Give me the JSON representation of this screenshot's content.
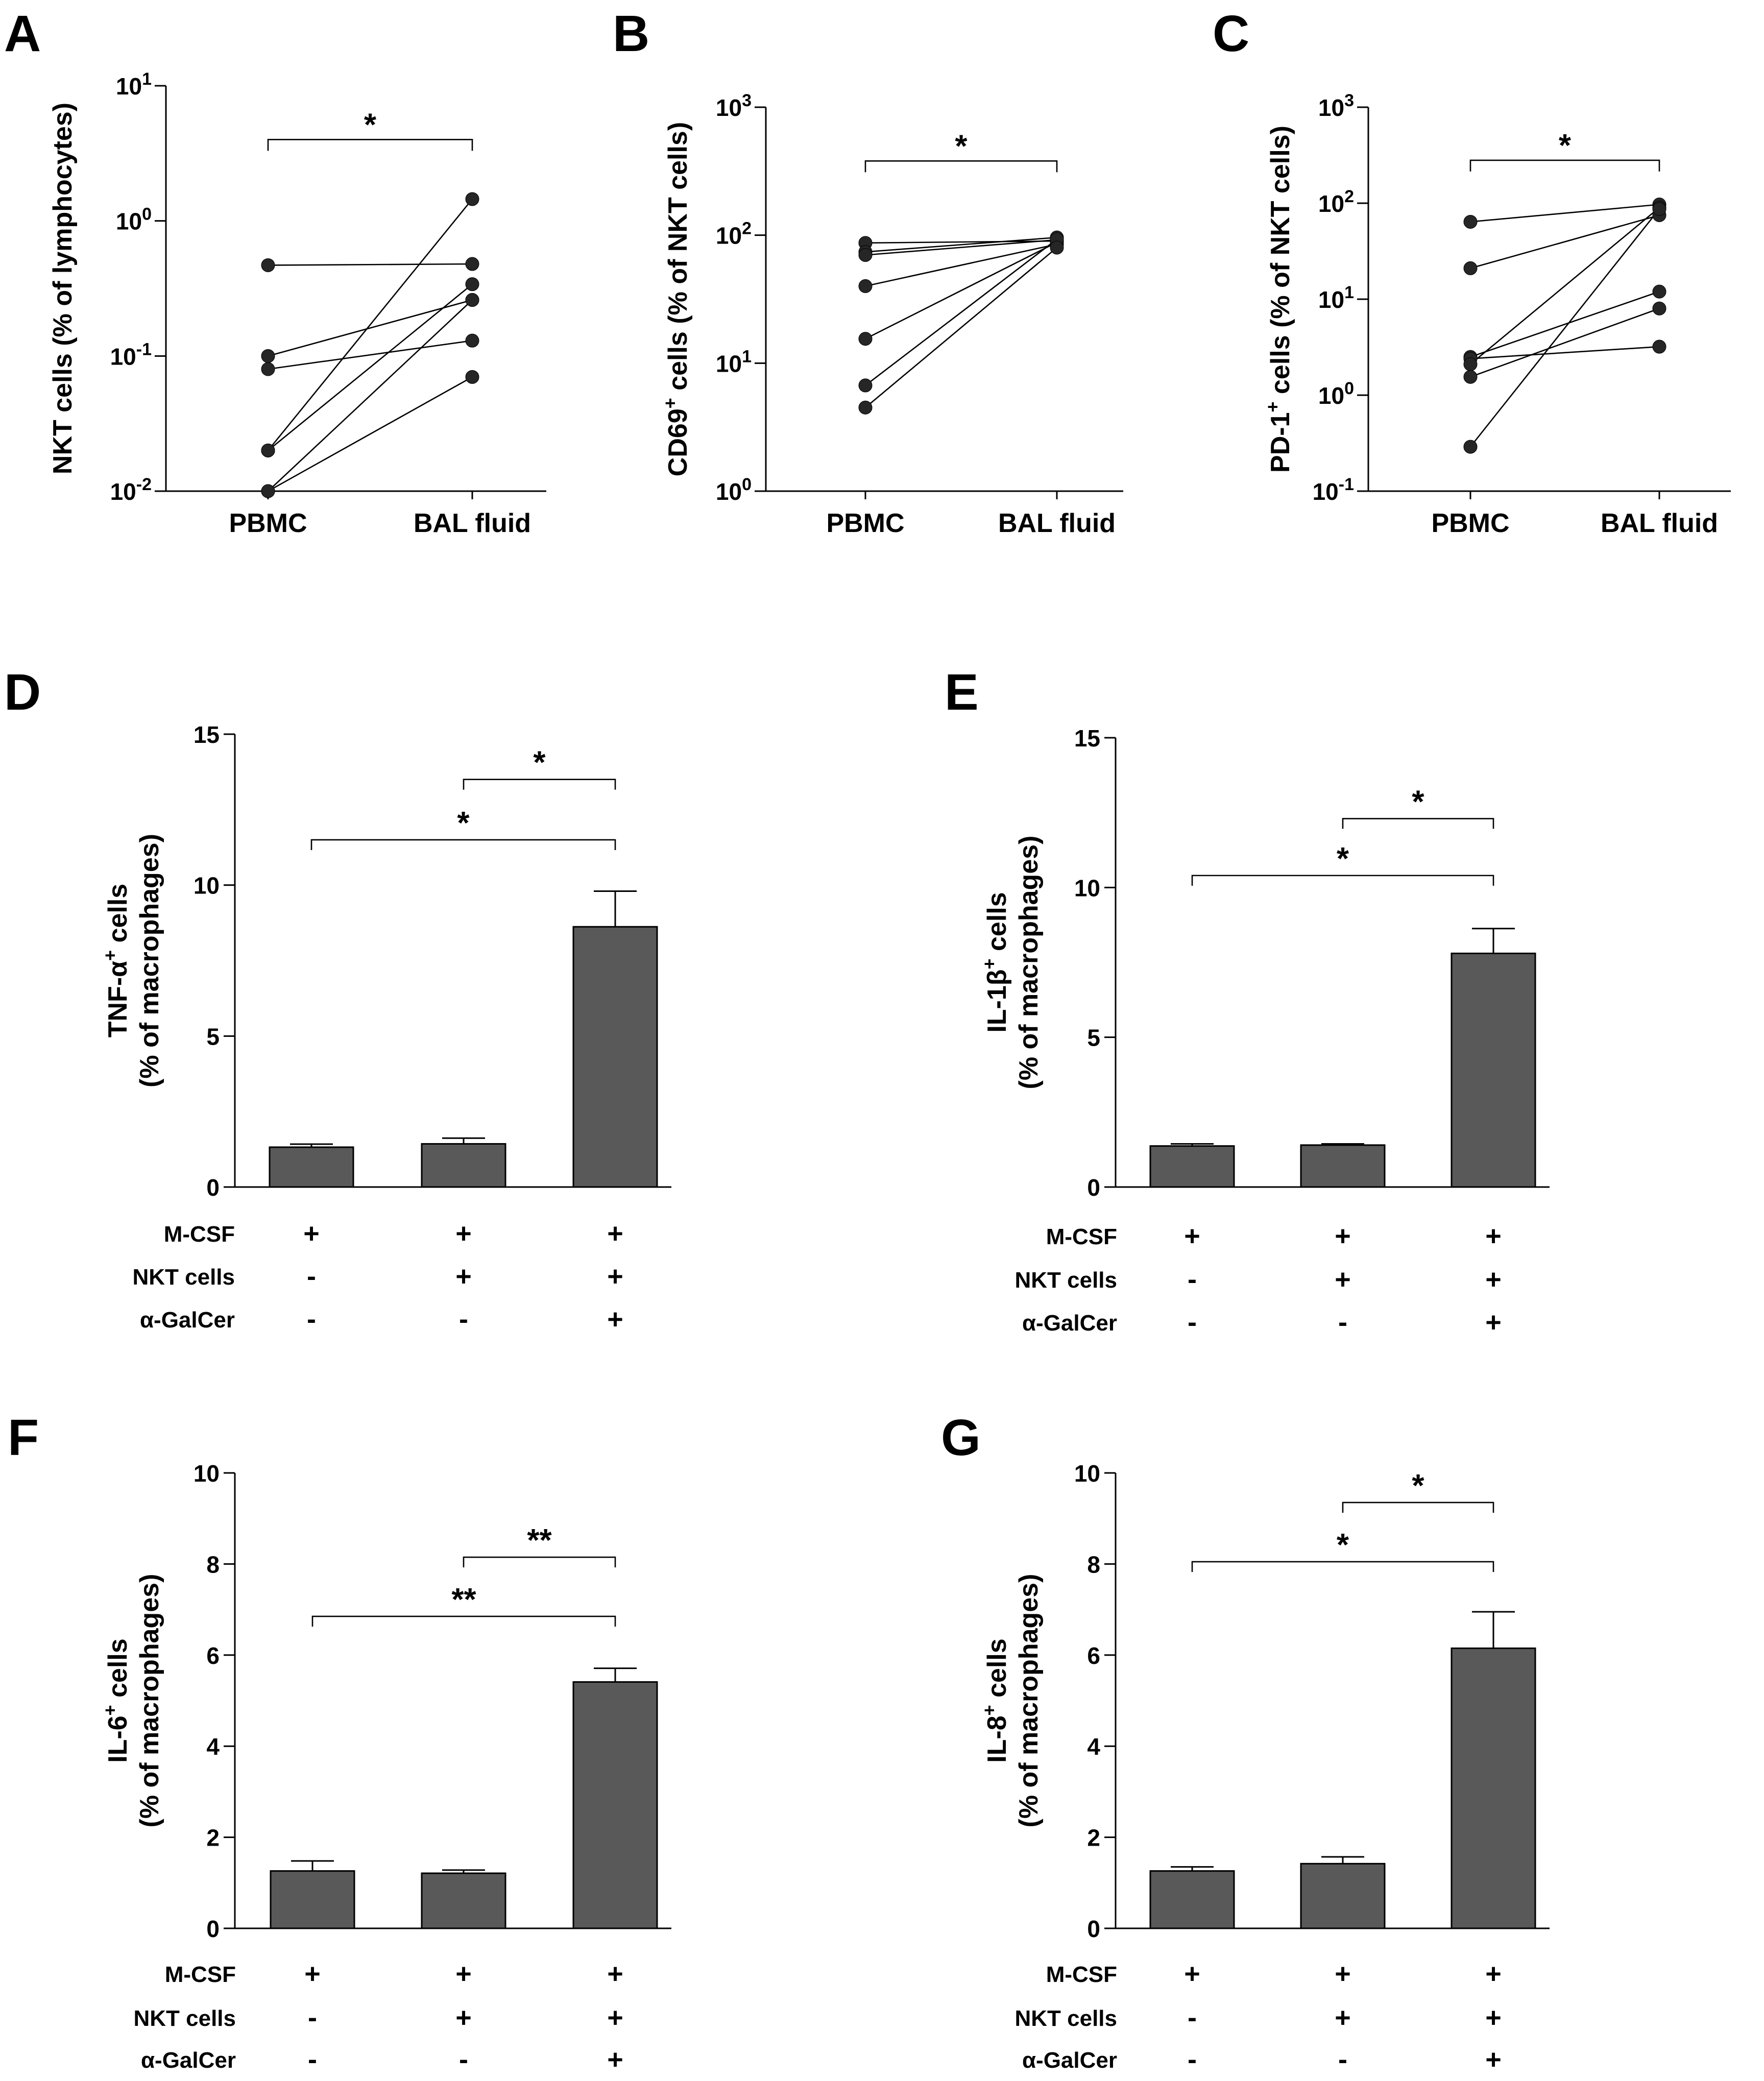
{
  "colors": {
    "bar_fill": "#595959",
    "dot_fill": "#262626",
    "line": "#000000",
    "background": "#ffffff"
  },
  "chart_data": [
    {
      "id": "A",
      "panel_label": "A",
      "type": "paired-scatter",
      "yscale": "log",
      "ylabel": "NKT cells (% of lymphocytes)",
      "ylabel_parts": [
        {
          "t": "NKT cells (% of lymphocytes)"
        }
      ],
      "ylim": [
        0.01,
        10
      ],
      "ytick_labels": [
        {
          "value": 0.01,
          "base": "10",
          "exp": "-2"
        },
        {
          "value": 0.1,
          "base": "10",
          "exp": "-1"
        },
        {
          "value": 1,
          "base": "10",
          "exp": "0"
        },
        {
          "value": 10,
          "base": "10",
          "exp": "1"
        }
      ],
      "categories": [
        "PBMC",
        "BAL fluid"
      ],
      "pairs": [
        [
          0.47,
          0.48
        ],
        [
          0.1,
          0.26
        ],
        [
          0.08,
          0.13
        ],
        [
          0.02,
          0.34
        ],
        [
          0.02,
          1.45
        ],
        [
          0.01,
          0.26
        ],
        [
          0.01,
          0.07
        ]
      ],
      "significance": [
        {
          "from": 0,
          "to": 1,
          "label": "*",
          "at": 4.0
        }
      ]
    },
    {
      "id": "B",
      "panel_label": "B",
      "type": "paired-scatter",
      "yscale": "log",
      "ylabel": "CD69+ cells (% of NKT cells)",
      "ylabel_parts": [
        {
          "t": "CD69"
        },
        {
          "t": "+",
          "sup": true
        },
        {
          "t": " cells (% of NKT cells)"
        }
      ],
      "ylim": [
        1,
        1000
      ],
      "ytick_labels": [
        {
          "value": 1,
          "base": "10",
          "exp": "0"
        },
        {
          "value": 10,
          "base": "10",
          "exp": "1"
        },
        {
          "value": 100,
          "base": "10",
          "exp": "2"
        },
        {
          "value": 1000,
          "base": "10",
          "exp": "3"
        }
      ],
      "categories": [
        "PBMC",
        "BAL fluid"
      ],
      "pairs": [
        [
          87,
          90
        ],
        [
          74,
          96
        ],
        [
          70,
          92
        ],
        [
          40,
          85
        ],
        [
          15.5,
          88
        ],
        [
          6.7,
          93
        ],
        [
          4.5,
          80
        ]
      ],
      "significance": [
        {
          "from": 0,
          "to": 1,
          "label": "*",
          "at": 380
        }
      ]
    },
    {
      "id": "C",
      "panel_label": "C",
      "type": "paired-scatter",
      "yscale": "log",
      "ylabel": "PD-1+ cells (% of NKT cells)",
      "ylabel_parts": [
        {
          "t": "PD-1"
        },
        {
          "t": "+",
          "sup": true
        },
        {
          "t": " cells (% of NKT cells)"
        }
      ],
      "ylim": [
        0.1,
        1000
      ],
      "ytick_labels": [
        {
          "value": 0.1,
          "base": "10",
          "exp": "-1"
        },
        {
          "value": 1,
          "base": "10",
          "exp": "0"
        },
        {
          "value": 10,
          "base": "10",
          "exp": "1"
        },
        {
          "value": 100,
          "base": "10",
          "exp": "2"
        },
        {
          "value": 1000,
          "base": "10",
          "exp": "3"
        }
      ],
      "categories": [
        "PBMC",
        "BAL fluid"
      ],
      "pairs": [
        [
          64,
          97
        ],
        [
          21,
          75
        ],
        [
          2.5,
          12
        ],
        [
          2.4,
          3.2
        ],
        [
          2.1,
          90
        ],
        [
          1.55,
          8
        ],
        [
          0.29,
          87
        ]
      ],
      "significance": [
        {
          "from": 0,
          "to": 1,
          "label": "*",
          "at": 280
        }
      ]
    },
    {
      "id": "D",
      "panel_label": "D",
      "type": "bar",
      "ylabel_line1": "TNF-α+ cells",
      "ylabel_line1_parts": [
        {
          "t": "TNF-α"
        },
        {
          "t": "+",
          "sup": true
        },
        {
          "t": " cells"
        }
      ],
      "ylabel_line2": "(% of macrophages)",
      "ylim": [
        0,
        15
      ],
      "yticks": [
        0,
        5,
        10,
        15
      ],
      "values": [
        1.32,
        1.43,
        8.62
      ],
      "errors": [
        0.1,
        0.19,
        1.18
      ],
      "significance": [
        {
          "from": 1,
          "to": 2,
          "label": "*",
          "at": 13.5
        },
        {
          "from": 0,
          "to": 2,
          "label": "*",
          "at": 11.5
        }
      ],
      "conditions": [
        {
          "name": "M-CSF",
          "marks": [
            "+",
            "+",
            "+"
          ]
        },
        {
          "name": "NKT cells",
          "marks": [
            "-",
            "+",
            "+"
          ]
        },
        {
          "name": "α-GalCer",
          "marks": [
            "-",
            "-",
            "+"
          ]
        }
      ]
    },
    {
      "id": "E",
      "panel_label": "E",
      "type": "bar",
      "ylabel_line1": "IL-1β+ cells",
      "ylabel_line1_parts": [
        {
          "t": "IL-1β"
        },
        {
          "t": "+",
          "sup": true
        },
        {
          "t": " cells"
        }
      ],
      "ylabel_line2": "(% of macrophages)",
      "ylim": [
        0,
        15
      ],
      "yticks": [
        0,
        5,
        10,
        15
      ],
      "values": [
        1.37,
        1.4,
        7.8
      ],
      "errors": [
        0.07,
        0.04,
        0.83
      ],
      "significance": [
        {
          "from": 1,
          "to": 2,
          "label": "*",
          "at": 12.3
        },
        {
          "from": 0,
          "to": 2,
          "label": "*",
          "at": 10.4
        }
      ],
      "conditions": [
        {
          "name": "M-CSF",
          "marks": [
            "+",
            "+",
            "+"
          ]
        },
        {
          "name": "NKT cells",
          "marks": [
            "-",
            "+",
            "+"
          ]
        },
        {
          "name": "α-GalCer",
          "marks": [
            "-",
            "-",
            "+"
          ]
        }
      ]
    },
    {
      "id": "F",
      "panel_label": "F",
      "type": "bar",
      "ylabel_line1": "IL-6+ cells",
      "ylabel_line1_parts": [
        {
          "t": "IL-6"
        },
        {
          "t": "+",
          "sup": true
        },
        {
          "t": " cells"
        }
      ],
      "ylabel_line2": "(% of macrophages)",
      "ylim": [
        0,
        10
      ],
      "yticks": [
        0,
        2,
        4,
        6,
        8,
        10
      ],
      "values": [
        1.26,
        1.21,
        5.41
      ],
      "errors": [
        0.22,
        0.07,
        0.3
      ],
      "significance": [
        {
          "from": 1,
          "to": 2,
          "label": "**",
          "at": 8.15
        },
        {
          "from": 0,
          "to": 2,
          "label": "**",
          "at": 6.85
        }
      ],
      "conditions": [
        {
          "name": "M-CSF",
          "marks": [
            "+",
            "+",
            "+"
          ]
        },
        {
          "name": "NKT cells",
          "marks": [
            "-",
            "+",
            "+"
          ]
        },
        {
          "name": "α-GalCer",
          "marks": [
            "-",
            "-",
            "+"
          ]
        }
      ]
    },
    {
      "id": "G",
      "panel_label": "G",
      "type": "bar",
      "ylabel_line1": "IL-8+ cells",
      "ylabel_line1_parts": [
        {
          "t": "IL-8"
        },
        {
          "t": "+",
          "sup": true
        },
        {
          "t": " cells"
        }
      ],
      "ylabel_line2": "(% of macrophages)",
      "ylim": [
        0,
        10
      ],
      "yticks": [
        0,
        2,
        4,
        6,
        8,
        10
      ],
      "values": [
        1.26,
        1.42,
        6.15
      ],
      "errors": [
        0.09,
        0.15,
        0.8
      ],
      "significance": [
        {
          "from": 1,
          "to": 2,
          "label": "*",
          "at": 9.35
        },
        {
          "from": 0,
          "to": 2,
          "label": "*",
          "at": 8.05
        }
      ],
      "conditions": [
        {
          "name": "M-CSF",
          "marks": [
            "+",
            "+",
            "+"
          ]
        },
        {
          "name": "NKT cells",
          "marks": [
            "-",
            "+",
            "+"
          ]
        },
        {
          "name": "α-GalCer",
          "marks": [
            "-",
            "-",
            "+"
          ]
        }
      ]
    }
  ]
}
